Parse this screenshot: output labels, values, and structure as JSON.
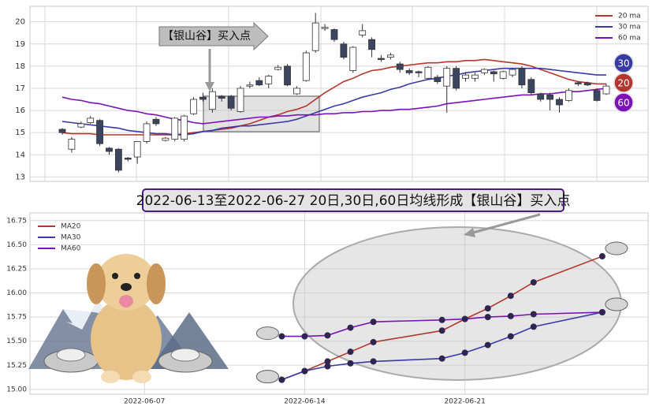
{
  "chart_data": [
    {
      "type": "candlestick",
      "open": [
        15.15,
        14.25,
        15.25,
        15.45,
        15.55,
        14.3,
        14.25,
        13.85,
        13.9,
        14.6,
        15.6,
        14.65,
        14.7,
        14.7,
        15.85,
        16.6,
        16.05,
        16.65,
        16.65,
        15.95,
        17.1,
        17.35,
        17.2,
        17.85,
        18.0,
        16.75,
        17.35,
        18.7,
        19.7,
        19.65,
        19.0,
        17.8,
        19.4,
        19.2,
        18.35,
        18.4,
        18.1,
        17.8,
        17.75,
        17.45,
        17.5,
        17.1,
        17.9,
        17.45,
        17.45,
        17.7,
        17.75,
        17.45,
        17.6,
        17.9,
        17.4,
        16.75,
        16.7,
        16.5,
        16.45,
        17.25,
        17.25,
        16.9,
        16.75
      ],
      "high": [
        15.2,
        14.8,
        15.5,
        15.75,
        15.6,
        14.35,
        14.3,
        13.9,
        14.6,
        15.5,
        15.7,
        14.8,
        15.7,
        15.8,
        16.6,
        16.8,
        17.0,
        16.7,
        16.7,
        17.1,
        17.3,
        17.5,
        17.6,
        18.05,
        18.1,
        17.1,
        18.7,
        20.4,
        19.9,
        19.7,
        19.1,
        18.9,
        19.9,
        19.3,
        18.5,
        18.6,
        18.2,
        17.9,
        17.8,
        18.0,
        17.6,
        18.0,
        18.0,
        17.7,
        17.7,
        17.9,
        17.8,
        17.8,
        17.9,
        18.0,
        17.5,
        16.8,
        16.8,
        16.6,
        17.0,
        17.3,
        17.3,
        17.0,
        17.2
      ],
      "low": [
        14.9,
        14.1,
        15.2,
        15.4,
        14.4,
        14.0,
        13.2,
        13.7,
        13.6,
        14.5,
        15.3,
        14.6,
        14.6,
        14.6,
        15.8,
        16.4,
        15.9,
        16.4,
        16.0,
        15.9,
        17.0,
        17.1,
        17.0,
        17.8,
        17.1,
        16.7,
        17.3,
        18.6,
        19.6,
        19.1,
        18.3,
        17.7,
        19.3,
        18.4,
        18.2,
        18.3,
        17.7,
        17.6,
        17.5,
        17.4,
        17.2,
        15.9,
        16.9,
        17.3,
        17.3,
        17.6,
        17.3,
        17.4,
        17.5,
        17.0,
        16.7,
        16.4,
        16.0,
        15.9,
        16.4,
        17.1,
        17.1,
        16.4,
        16.7
      ],
      "close": [
        15.0,
        14.7,
        15.4,
        15.65,
        14.5,
        14.15,
        13.3,
        13.8,
        14.6,
        15.4,
        15.4,
        14.75,
        15.65,
        15.75,
        16.5,
        16.5,
        16.85,
        16.55,
        16.1,
        17.0,
        17.15,
        17.15,
        17.55,
        17.95,
        17.15,
        17.0,
        18.6,
        19.95,
        19.75,
        19.2,
        18.4,
        18.85,
        19.6,
        18.75,
        18.3,
        18.5,
        17.85,
        17.7,
        17.7,
        17.95,
        17.3,
        17.9,
        17.0,
        17.6,
        17.6,
        17.85,
        17.65,
        17.75,
        17.85,
        17.15,
        16.8,
        16.5,
        16.5,
        16.25,
        16.9,
        17.2,
        17.15,
        16.45,
        17.1
      ],
      "up_color": "#ffffff",
      "down_color": "#3b4560",
      "series": [
        {
          "name": "20 ma",
          "color": "#b5362c",
          "values": [
            15.0,
            14.95,
            14.95,
            14.95,
            14.9,
            14.9,
            14.9,
            14.9,
            14.9,
            14.9,
            14.9,
            14.9,
            14.9,
            14.95,
            15.0,
            15.05,
            15.1,
            15.15,
            15.2,
            15.3,
            15.4,
            15.55,
            15.7,
            15.8,
            15.95,
            16.05,
            16.2,
            16.5,
            16.8,
            17.05,
            17.3,
            17.45,
            17.65,
            17.8,
            17.85,
            17.95,
            18.0,
            18.05,
            18.1,
            18.15,
            18.15,
            18.2,
            18.2,
            18.25,
            18.25,
            18.3,
            18.25,
            18.2,
            18.15,
            18.1,
            18.0,
            17.85,
            17.7,
            17.55,
            17.4,
            17.3,
            17.25,
            17.2,
            17.2
          ]
        },
        {
          "name": "30 ma",
          "color": "#3a3aa6",
          "values": [
            15.5,
            15.45,
            15.4,
            15.35,
            15.3,
            15.25,
            15.2,
            15.1,
            15.05,
            15.0,
            14.95,
            14.95,
            14.9,
            14.9,
            14.95,
            15.05,
            15.1,
            15.2,
            15.25,
            15.3,
            15.3,
            15.35,
            15.4,
            15.45,
            15.5,
            15.6,
            15.75,
            15.9,
            16.05,
            16.2,
            16.3,
            16.45,
            16.6,
            16.7,
            16.8,
            16.95,
            17.05,
            17.2,
            17.3,
            17.4,
            17.45,
            17.55,
            17.6,
            17.7,
            17.75,
            17.8,
            17.85,
            17.9,
            17.9,
            17.9,
            17.9,
            17.9,
            17.85,
            17.8,
            17.75,
            17.7,
            17.65,
            17.6,
            17.6
          ]
        },
        {
          "name": "60 ma",
          "color": "#7a12b8",
          "values": [
            16.6,
            16.5,
            16.45,
            16.35,
            16.3,
            16.2,
            16.1,
            16.0,
            15.95,
            15.85,
            15.8,
            15.7,
            15.6,
            15.55,
            15.45,
            15.4,
            15.45,
            15.5,
            15.55,
            15.6,
            15.65,
            15.7,
            15.7,
            15.75,
            15.75,
            15.8,
            15.8,
            15.8,
            15.85,
            15.85,
            15.9,
            15.9,
            15.95,
            15.95,
            16.0,
            16.0,
            16.05,
            16.05,
            16.1,
            16.15,
            16.2,
            16.3,
            16.35,
            16.4,
            16.45,
            16.5,
            16.55,
            16.6,
            16.65,
            16.7,
            16.7,
            16.75,
            16.75,
            16.8,
            16.85,
            16.85,
            16.9,
            16.95,
            17.0
          ]
        }
      ],
      "ylim": [
        12.8,
        20.7
      ],
      "yticks": [
        13,
        14,
        15,
        16,
        17,
        18,
        19,
        20
      ],
      "grid": true,
      "legend": "upper right",
      "annotation": "【银山谷】买入点",
      "badges": [
        "30",
        "20",
        "60"
      ]
    },
    {
      "type": "line",
      "x": [
        "2022-06-13",
        "2022-06-14",
        "2022-06-15",
        "2022-06-16",
        "2022-06-17",
        "2022-06-20",
        "2022-06-21",
        "2022-06-22",
        "2022-06-23",
        "2022-06-24",
        "2022-06-27"
      ],
      "series": [
        {
          "name": "MA20",
          "color": "#b5362c",
          "values": [
            15.1,
            15.19,
            15.29,
            15.39,
            15.49,
            15.61,
            15.73,
            15.84,
            15.97,
            16.11,
            16.38
          ]
        },
        {
          "name": "MA30",
          "color": "#3a3aa6",
          "values": [
            15.1,
            15.19,
            15.24,
            15.27,
            15.29,
            15.32,
            15.38,
            15.46,
            15.55,
            15.65,
            15.8
          ]
        },
        {
          "name": "MA60",
          "color": "#7a12b8",
          "values": [
            15.55,
            15.55,
            15.56,
            15.64,
            15.7,
            15.72,
            15.73,
            15.75,
            15.76,
            15.78,
            15.8
          ]
        }
      ],
      "xlim": [
        "2022-06-02",
        "2022-06-29"
      ],
      "xticks": [
        "2022-06-07",
        "2022-06-14",
        "2022-06-21"
      ],
      "ylim": [
        14.95,
        16.83
      ],
      "yticks": [
        {
          "value": 15,
          "label": "15.00"
        },
        {
          "value": 15.25,
          "label": "15.25"
        },
        {
          "value": 15.5,
          "label": "15.50"
        },
        {
          "value": 15.75,
          "label": "15.75"
        },
        {
          "value": 16,
          "label": "16.00"
        },
        {
          "value": 16.25,
          "label": "16.25"
        },
        {
          "value": 16.5,
          "label": "16.50"
        },
        {
          "value": 16.75,
          "label": "16.75"
        }
      ],
      "grid": true,
      "legend": "upper left"
    }
  ],
  "banner": "2022-06-13至2022-06-27 20日,30日,60日均线形成【银山谷】买入点"
}
